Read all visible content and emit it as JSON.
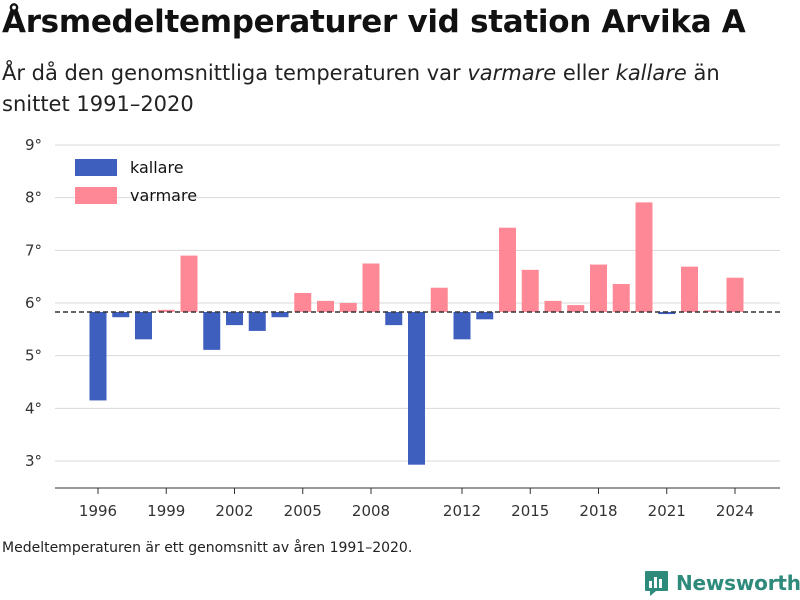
{
  "title": "Årsmedeltemperaturer vid station Arvika A",
  "subtitle_parts": {
    "p1": "År då den genomsnittliga temperaturen var ",
    "warm": "varmare",
    "p2": " eller ",
    "cold": "kallare",
    "p3": " än snittet 1991–2020"
  },
  "footnote": "Medeltemperaturen är ett genomsnitt av åren 1991–2020.",
  "brand": "Newsworthy",
  "colors": {
    "kallare": "#3f5fbf",
    "varmare": "#ff8896",
    "brand": "#2e8a7a"
  },
  "legend": [
    {
      "label": "kallare",
      "color": "#3f5fbf"
    },
    {
      "label": "varmare",
      "color": "#ff8896"
    }
  ],
  "chart_data": {
    "type": "bar",
    "baseline": 5.83,
    "baseline_style": "dashed",
    "ylim": [
      2.5,
      9.0
    ],
    "y_ticks": [
      3,
      4,
      5,
      6,
      7,
      8,
      9
    ],
    "y_tick_labels": [
      "3°",
      "4°",
      "5°",
      "6°",
      "7°",
      "8°",
      "9°"
    ],
    "x_ticks": [
      1996,
      1999,
      2002,
      2005,
      2008,
      2012,
      2015,
      2018,
      2021,
      2024
    ],
    "grid": true,
    "legend_position": "top-left",
    "xlabel": "",
    "ylabel": "",
    "series": [
      {
        "name": "kallare",
        "color": "#3f5fbf"
      },
      {
        "name": "varmare",
        "color": "#ff8896"
      }
    ],
    "points": [
      {
        "year": 1996,
        "value": 4.15,
        "series": "kallare"
      },
      {
        "year": 1997,
        "value": 5.73,
        "series": "kallare"
      },
      {
        "year": 1998,
        "value": 5.31,
        "series": "kallare"
      },
      {
        "year": 1999,
        "value": 5.87,
        "series": "varmare"
      },
      {
        "year": 2000,
        "value": 6.9,
        "series": "varmare"
      },
      {
        "year": 2001,
        "value": 5.11,
        "series": "kallare"
      },
      {
        "year": 2002,
        "value": 5.58,
        "series": "kallare"
      },
      {
        "year": 2003,
        "value": 5.47,
        "series": "kallare"
      },
      {
        "year": 2004,
        "value": 5.73,
        "series": "kallare"
      },
      {
        "year": 2005,
        "value": 6.19,
        "series": "varmare"
      },
      {
        "year": 2006,
        "value": 6.04,
        "series": "varmare"
      },
      {
        "year": 2007,
        "value": 6.0,
        "series": "varmare"
      },
      {
        "year": 2008,
        "value": 6.75,
        "series": "varmare"
      },
      {
        "year": 2009,
        "value": 5.58,
        "series": "kallare"
      },
      {
        "year": 2010,
        "value": 2.93,
        "series": "kallare"
      },
      {
        "year": 2011,
        "value": 6.29,
        "series": "varmare"
      },
      {
        "year": 2012,
        "value": 5.31,
        "series": "kallare"
      },
      {
        "year": 2013,
        "value": 5.69,
        "series": "kallare"
      },
      {
        "year": 2014,
        "value": 7.43,
        "series": "varmare"
      },
      {
        "year": 2015,
        "value": 6.63,
        "series": "varmare"
      },
      {
        "year": 2016,
        "value": 6.04,
        "series": "varmare"
      },
      {
        "year": 2017,
        "value": 5.96,
        "series": "varmare"
      },
      {
        "year": 2018,
        "value": 6.73,
        "series": "varmare"
      },
      {
        "year": 2019,
        "value": 6.36,
        "series": "varmare"
      },
      {
        "year": 2020,
        "value": 7.91,
        "series": "varmare"
      },
      {
        "year": 2021,
        "value": 5.79,
        "series": "kallare"
      },
      {
        "year": 2022,
        "value": 6.69,
        "series": "varmare"
      },
      {
        "year": 2023,
        "value": 5.86,
        "series": "varmare"
      },
      {
        "year": 2024,
        "value": 6.48,
        "series": "varmare"
      }
    ]
  }
}
